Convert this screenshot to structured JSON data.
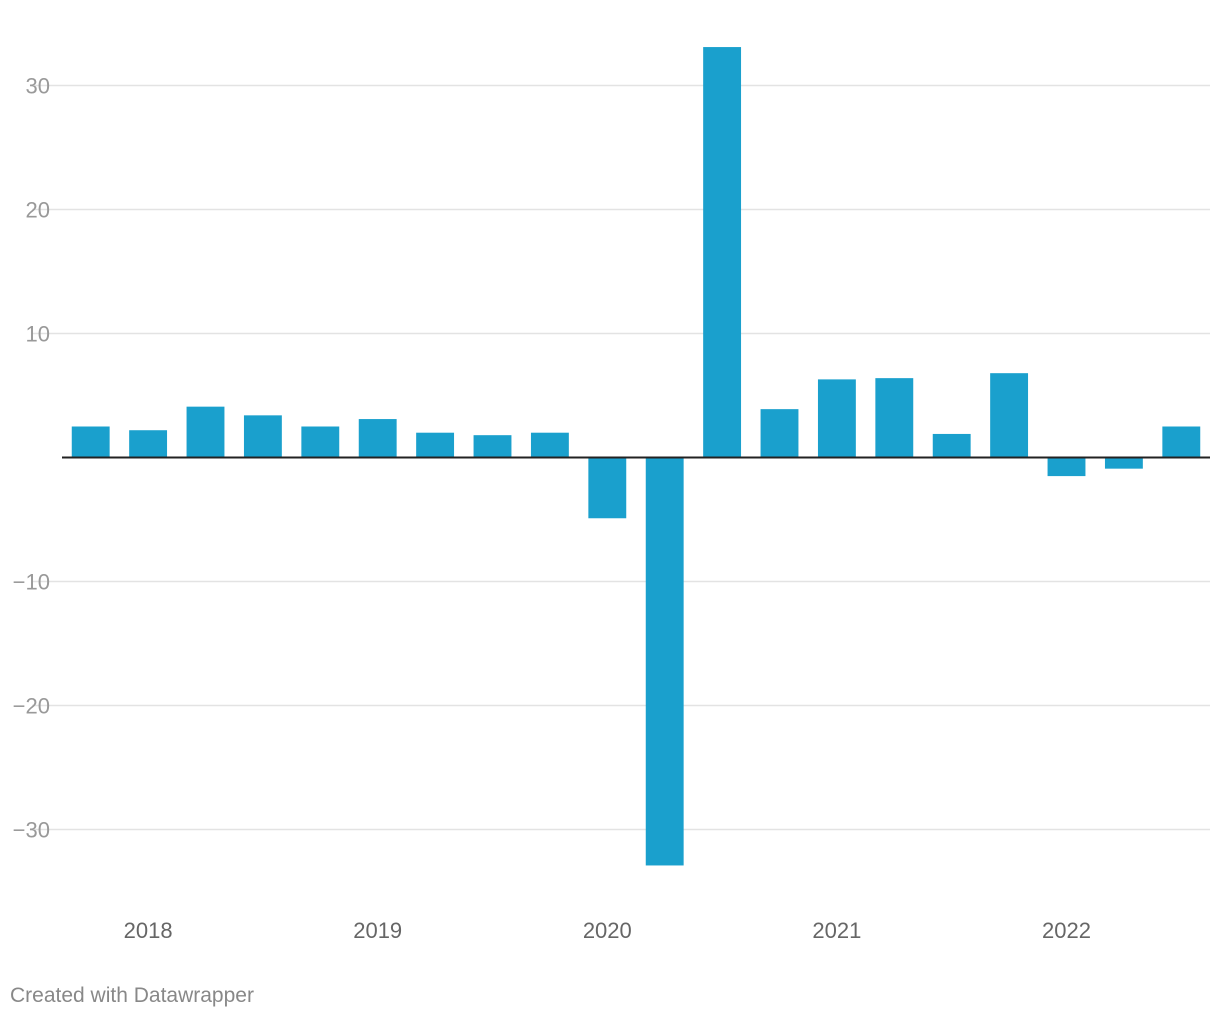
{
  "chart_data": {
    "type": "bar",
    "categories": [
      "2018 Q1",
      "2018 Q2",
      "2018 Q3",
      "2018 Q4",
      "2019 Q1",
      "2019 Q2",
      "2019 Q3",
      "2019 Q4",
      "2020 Q1",
      "2020 Q2",
      "2020 Q3",
      "2020 Q4",
      "2021 Q1",
      "2021 Q2",
      "2021 Q3",
      "2021 Q4",
      "2022 Q1",
      "2022 Q2",
      "2022 Q3",
      "2022 Q4"
    ],
    "values": [
      2.5,
      2.2,
      4.1,
      3.4,
      2.5,
      3.1,
      2.0,
      1.8,
      2.0,
      -4.9,
      -32.9,
      33.1,
      3.9,
      6.3,
      6.4,
      1.9,
      6.8,
      -1.5,
      -0.9,
      2.5
    ],
    "title": "",
    "xlabel": "",
    "ylabel": "",
    "ylim": [
      -35,
      35
    ],
    "yticks": [
      30,
      20,
      10,
      -10,
      -20,
      -30
    ],
    "ytick_labels": [
      "30",
      "20",
      "10",
      "−10",
      "−20",
      "−30"
    ],
    "xtick_labels": [
      "2018",
      "2019",
      "2020",
      "2021",
      "2022"
    ],
    "grid": true,
    "bar_color": "#1aa0cd",
    "zero_line_color": "#222222",
    "grid_color": "#e3e3e3"
  },
  "footer": {
    "credit": "Created with Datawrapper"
  }
}
